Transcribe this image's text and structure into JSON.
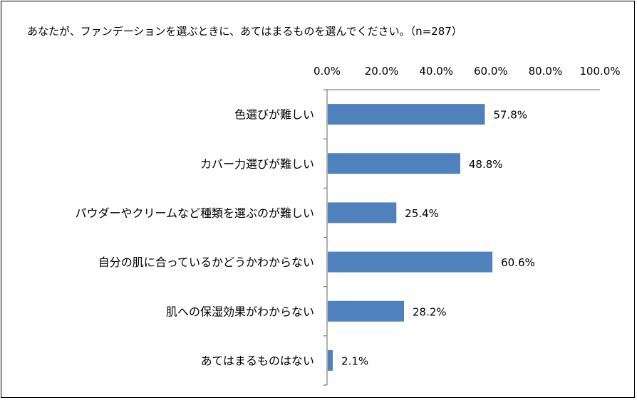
{
  "title": "あなたが、ファンデーションを選ぶときに、あてはまるものを選んでください。（n=287）",
  "colors": {
    "bar": "#4f81bd",
    "axis": "#868686",
    "frame": "#000000"
  },
  "chart_data": {
    "type": "bar",
    "orientation": "horizontal",
    "title": "あなたが、ファンデーションを選ぶときに、あてはまるものを選んでください。（n=287）",
    "categories": [
      "色選びが難しい",
      "カバー力選びが難しい",
      "パウダーやクリームなど種類を選ぶのが難しい",
      "自分の肌に合っているかどうかわからない",
      "肌への保湿効果がわからない",
      "あてはまるものはない"
    ],
    "values": [
      57.8,
      48.8,
      25.4,
      60.6,
      28.2,
      2.1
    ],
    "data_labels": [
      "57.8%",
      "48.8%",
      "25.4%",
      "60.6%",
      "28.2%",
      "2.1%"
    ],
    "xlim": [
      0,
      100
    ],
    "x_ticks": [
      0,
      20,
      40,
      60,
      80,
      100
    ],
    "x_tick_labels": [
      "0.0%",
      "20.0%",
      "40.0%",
      "60.0%",
      "80.0%",
      "100.0%"
    ],
    "x_axis_position": "top",
    "grid": false,
    "legend": "none"
  }
}
